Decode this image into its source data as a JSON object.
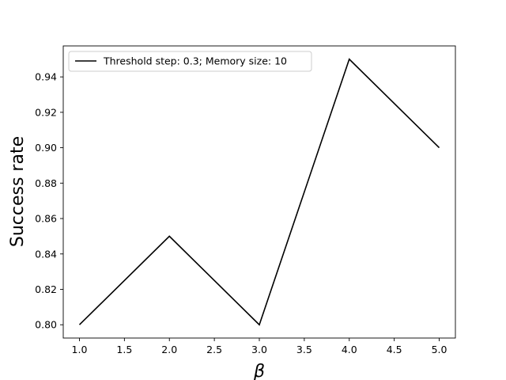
{
  "chart_data": {
    "type": "line",
    "title": "",
    "xlabel": "β",
    "ylabel": "Success rate",
    "x": [
      1.0,
      2.0,
      3.0,
      4.0,
      5.0
    ],
    "series": [
      {
        "name": "Threshold step: 0.3; Memory size: 10",
        "values": [
          0.8,
          0.85,
          0.8,
          0.95,
          0.9
        ],
        "color": "#000000"
      }
    ],
    "xlim": [
      0.82,
      5.18
    ],
    "ylim": [
      0.7925,
      0.9575
    ],
    "xticks": [
      "1.0",
      "1.5",
      "2.0",
      "2.5",
      "3.0",
      "3.5",
      "4.0",
      "4.5",
      "5.0"
    ],
    "yticks": [
      "0.80",
      "0.82",
      "0.84",
      "0.86",
      "0.88",
      "0.90",
      "0.92",
      "0.94"
    ],
    "grid": false,
    "legend_position": "top-left"
  }
}
